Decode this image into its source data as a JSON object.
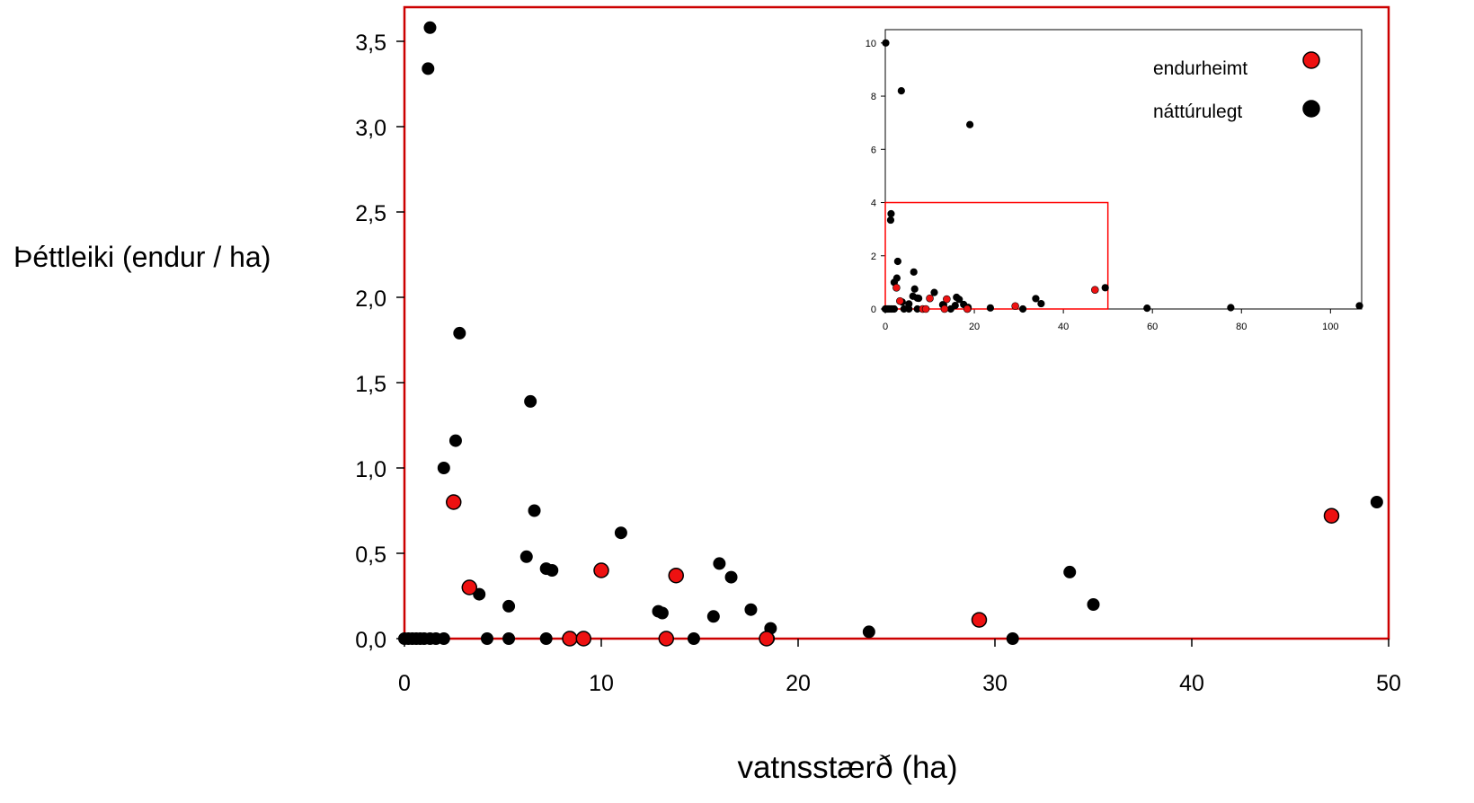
{
  "chart_data": {
    "type": "scatter",
    "main": {
      "xlabel": "vatnsstærð (ha)",
      "ylabel": "Þéttleiki (endur / ha)",
      "xlim": [
        0,
        50
      ],
      "ylim": [
        0,
        3.7
      ],
      "xticks": [
        0,
        10,
        20,
        30,
        40,
        50
      ],
      "xtick_labels": [
        "0",
        "10",
        "20",
        "30",
        "40",
        "50"
      ],
      "yticks": [
        0,
        0.5,
        1,
        1.5,
        2,
        2.5,
        3,
        3.5
      ],
      "ytick_labels": [
        "0,0",
        "0,5",
        "1,0",
        "1,5",
        "2,0",
        "2,5",
        "3,0",
        "3,5"
      ],
      "frame_color": "#cc0000"
    },
    "inset": {
      "xlim": [
        0,
        107
      ],
      "ylim": [
        0,
        10.5
      ],
      "xticks": [
        0,
        20,
        40,
        60,
        80,
        100
      ],
      "xtick_labels": [
        "0",
        "20",
        "40",
        "60",
        "80",
        "100"
      ],
      "yticks": [
        0,
        2,
        4,
        6,
        8,
        10
      ],
      "ytick_labels": [
        "0",
        "2",
        "4",
        "6",
        "8",
        "10"
      ],
      "zoom_box": {
        "x": [
          0,
          50
        ],
        "y": [
          0,
          4
        ],
        "color": "#ff0000"
      }
    },
    "legend": {
      "position": "top-right"
    },
    "series": [
      {
        "name": "endurheimt",
        "color": "#ee1111",
        "points": [
          [
            2.5,
            0.8
          ],
          [
            3.3,
            0.3
          ],
          [
            8.4,
            0.0
          ],
          [
            9.1,
            0.0
          ],
          [
            10.0,
            0.4
          ],
          [
            13.3,
            0.0
          ],
          [
            13.8,
            0.37
          ],
          [
            18.4,
            0.0
          ],
          [
            29.2,
            0.11
          ],
          [
            47.1,
            0.72
          ]
        ]
      },
      {
        "name": "náttúrulegt",
        "color": "#000000",
        "points": [
          [
            0.0,
            0.0
          ],
          [
            0.2,
            0.0
          ],
          [
            0.4,
            0.0
          ],
          [
            0.6,
            0.0
          ],
          [
            0.8,
            0.0
          ],
          [
            1.0,
            0.0
          ],
          [
            1.3,
            0.0
          ],
          [
            1.6,
            0.0
          ],
          [
            2.0,
            0.0
          ],
          [
            1.2,
            3.34
          ],
          [
            1.3,
            3.58
          ],
          [
            2.0,
            1.0
          ],
          [
            2.6,
            1.16
          ],
          [
            2.8,
            1.79
          ],
          [
            3.8,
            0.26
          ],
          [
            4.2,
            0.0
          ],
          [
            5.3,
            0.19
          ],
          [
            5.3,
            0.0
          ],
          [
            6.2,
            0.48
          ],
          [
            6.4,
            1.39
          ],
          [
            6.6,
            0.75
          ],
          [
            7.2,
            0.41
          ],
          [
            7.5,
            0.4
          ],
          [
            7.2,
            0.0
          ],
          [
            11.0,
            0.62
          ],
          [
            12.9,
            0.16
          ],
          [
            13.1,
            0.15
          ],
          [
            14.7,
            0.0
          ],
          [
            15.7,
            0.13
          ],
          [
            16.0,
            0.44
          ],
          [
            16.6,
            0.36
          ],
          [
            17.6,
            0.17
          ],
          [
            18.6,
            0.06
          ],
          [
            18.5,
            0.0
          ],
          [
            23.6,
            0.04
          ],
          [
            30.9,
            0.0
          ],
          [
            33.8,
            0.39
          ],
          [
            35.0,
            0.2
          ],
          [
            49.4,
            0.8
          ],
          [
            58.8,
            0.03
          ],
          [
            77.6,
            0.05
          ],
          [
            106.5,
            0.12
          ],
          [
            0.1,
            10.0
          ],
          [
            3.6,
            8.2
          ],
          [
            19.0,
            6.93
          ]
        ]
      }
    ]
  }
}
